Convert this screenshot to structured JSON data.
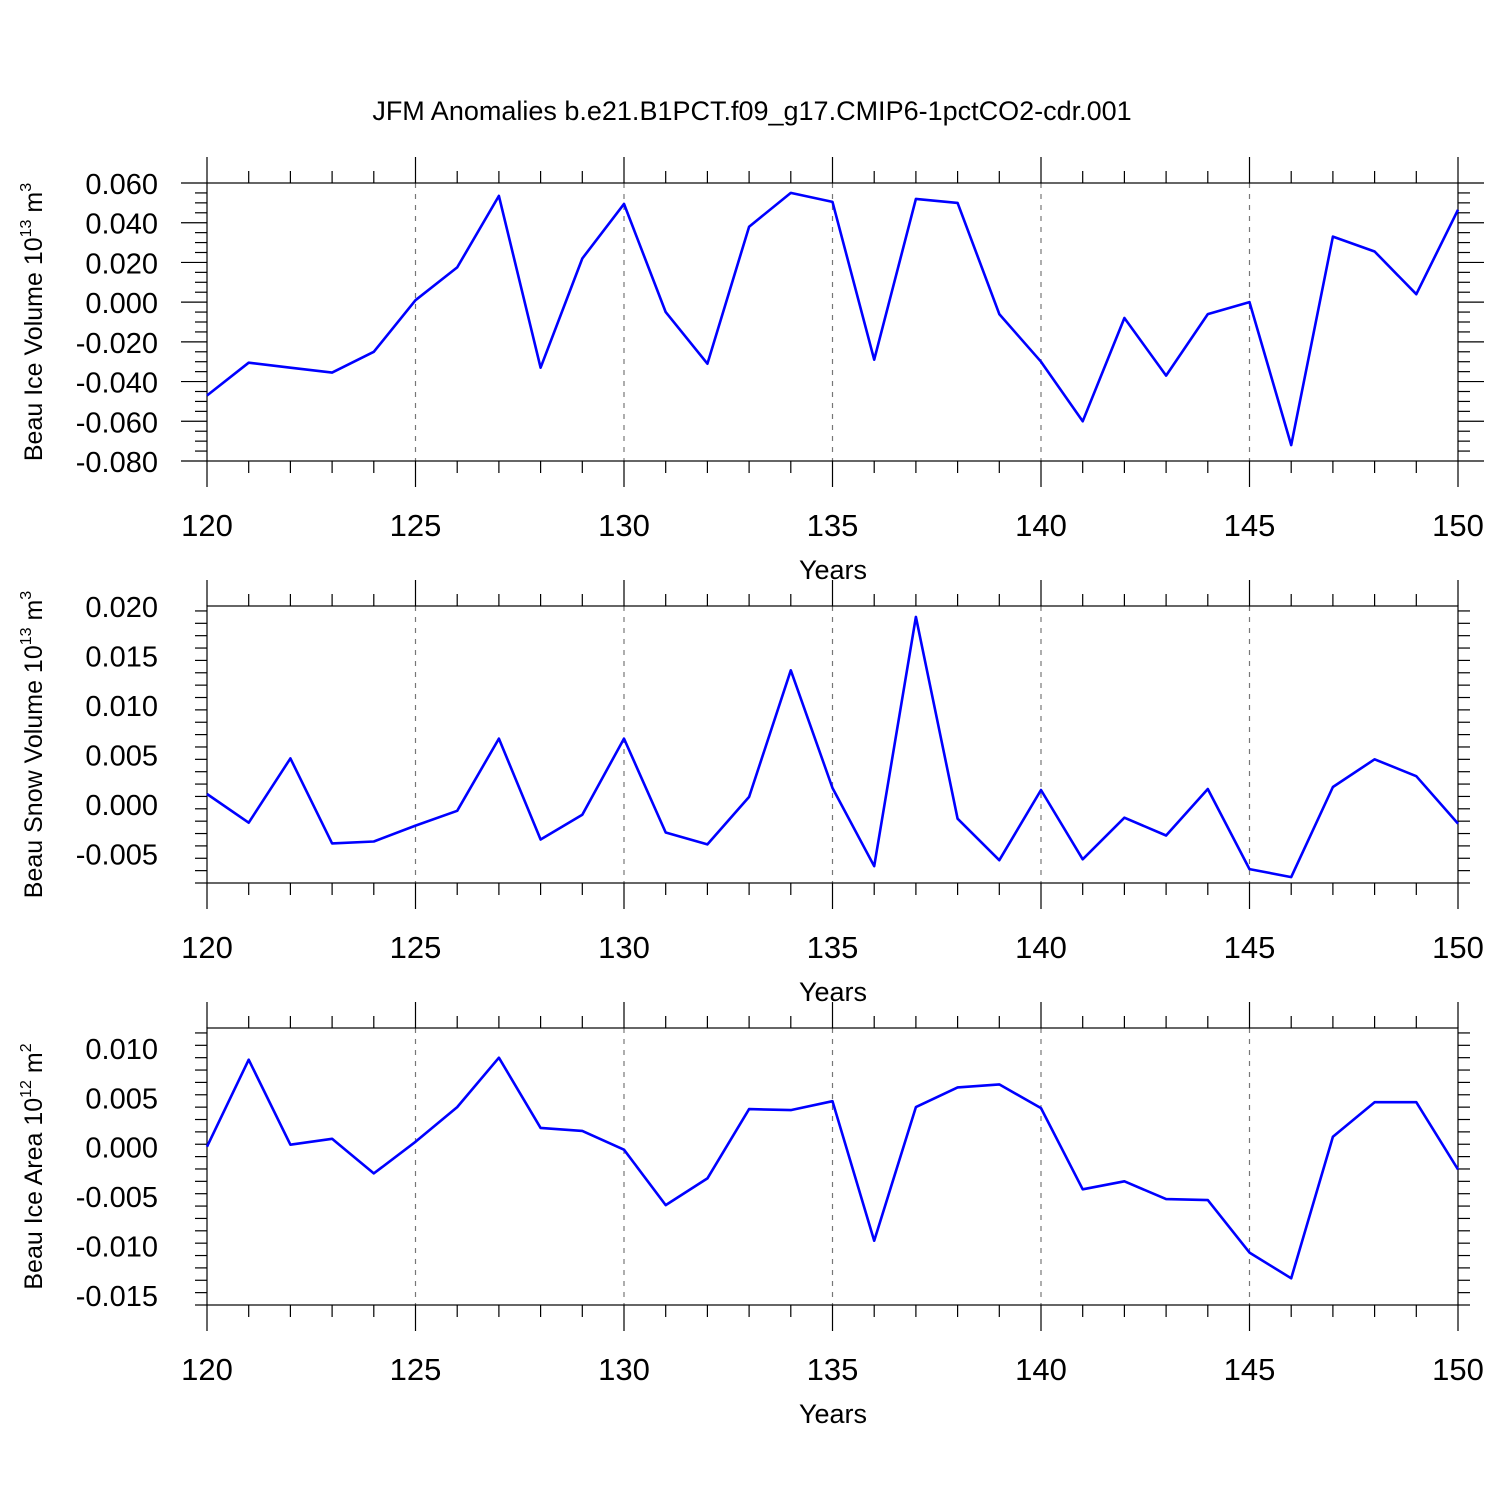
{
  "title": "JFM Anomalies b.e21.B1PCT.f09_g17.CMIP6-1pctCO2-cdr.001",
  "colors": {
    "line": "#0000ff",
    "axis": "#000000",
    "grid": "#777777"
  },
  "chart_data": [
    {
      "type": "line",
      "ylabel_main": "Beau Ice Volume 10",
      "ylabel_exp": "13",
      "ylabel_unit": " m",
      "ylabel_unit_exp": "3",
      "xlabel": "Years",
      "xlim": [
        120,
        150
      ],
      "ylim": [
        -0.08,
        0.06
      ],
      "yticks": [
        0.06,
        0.04,
        0.02,
        0.0,
        -0.02,
        -0.04,
        -0.06,
        -0.08
      ],
      "yticklabels": [
        "0.060",
        "0.040",
        "0.020",
        "0.000",
        "-0.020",
        "-0.040",
        "-0.060",
        "-0.080"
      ],
      "xticks": [
        120,
        125,
        130,
        135,
        140,
        145,
        150
      ],
      "xticklabels": [
        "120",
        "125",
        "130",
        "135",
        "140",
        "145",
        "150"
      ],
      "x": [
        120,
        121,
        122,
        123,
        124,
        125,
        126,
        127,
        128,
        129,
        130,
        131,
        132,
        133,
        134,
        135,
        136,
        137,
        138,
        139,
        140,
        141,
        142,
        143,
        144,
        145,
        146,
        147,
        148,
        149,
        150
      ],
      "values": [
        -0.047,
        -0.0305,
        -0.033,
        -0.0355,
        -0.025,
        0.001,
        0.0175,
        0.0535,
        -0.033,
        0.022,
        0.0495,
        -0.005,
        -0.031,
        0.038,
        0.055,
        0.0505,
        -0.029,
        0.052,
        0.05,
        -0.006,
        -0.03,
        -0.06,
        -0.008,
        -0.037,
        -0.006,
        0.0,
        -0.072,
        0.033,
        0.0255,
        0.004,
        0.0465
      ]
    },
    {
      "type": "line",
      "ylabel_main": "Beau Snow Volume 10",
      "ylabel_exp": "13",
      "ylabel_unit": " m",
      "ylabel_unit_exp": "3",
      "xlabel": "Years",
      "xlim": [
        120,
        150
      ],
      "ylim": [
        -0.008,
        0.02
      ],
      "yticks": [
        0.02,
        0.015,
        0.01,
        0.005,
        0.0,
        -0.005
      ],
      "yticklabels": [
        "0.020",
        "0.015",
        "0.010",
        "0.005",
        "0.000",
        "-0.005"
      ],
      "xticks": [
        120,
        125,
        130,
        135,
        140,
        145,
        150
      ],
      "xticklabels": [
        "120",
        "125",
        "130",
        "135",
        "140",
        "145",
        "150"
      ],
      "x": [
        120,
        121,
        122,
        123,
        124,
        125,
        126,
        127,
        128,
        129,
        130,
        131,
        132,
        133,
        134,
        135,
        136,
        137,
        138,
        139,
        140,
        141,
        142,
        143,
        144,
        145,
        146,
        147,
        148,
        149,
        150
      ],
      "values": [
        0.001,
        -0.0019,
        0.0046,
        -0.004,
        -0.0038,
        -0.0022,
        -0.0007,
        0.0066,
        -0.0036,
        -0.0011,
        0.0066,
        -0.0029,
        -0.0041,
        0.0007,
        0.0135,
        0.0016,
        -0.0063,
        0.0189,
        -0.0015,
        -0.0057,
        0.0014,
        -0.0056,
        -0.0014,
        -0.0032,
        0.0015,
        -0.0066,
        -0.0074,
        0.0017,
        0.0045,
        0.0028,
        -0.002
      ]
    },
    {
      "type": "line",
      "ylabel_main": "Beau Ice Area 10",
      "ylabel_exp": "12",
      "ylabel_unit": " m",
      "ylabel_unit_exp": "2",
      "xlabel": "Years",
      "xlim": [
        120,
        150
      ],
      "ylim": [
        -0.016,
        0.012
      ],
      "yticks": [
        0.01,
        0.005,
        0.0,
        -0.005,
        -0.01,
        -0.015
      ],
      "yticklabels": [
        "0.010",
        "0.005",
        "0.000",
        "-0.005",
        "-0.010",
        "-0.015"
      ],
      "xticks": [
        120,
        125,
        130,
        135,
        140,
        145,
        150
      ],
      "xticklabels": [
        "120",
        "125",
        "130",
        "135",
        "140",
        "145",
        "150"
      ],
      "x": [
        120,
        121,
        122,
        123,
        124,
        125,
        126,
        127,
        128,
        129,
        130,
        131,
        132,
        133,
        134,
        135,
        136,
        137,
        138,
        139,
        140,
        141,
        142,
        143,
        144,
        145,
        146,
        147,
        148,
        149,
        150
      ],
      "values": [
        0.0,
        0.0088,
        0.0002,
        0.0008,
        -0.0027,
        0.0005,
        0.004,
        0.009,
        0.0019,
        0.0016,
        -0.0003,
        -0.0059,
        -0.0032,
        0.0038,
        0.0037,
        0.0046,
        -0.0095,
        0.004,
        0.006,
        0.0063,
        0.0039,
        -0.0043,
        -0.0035,
        -0.0053,
        -0.0054,
        -0.0107,
        -0.0133,
        0.001,
        0.0045,
        0.0045,
        -0.0023
      ]
    }
  ]
}
